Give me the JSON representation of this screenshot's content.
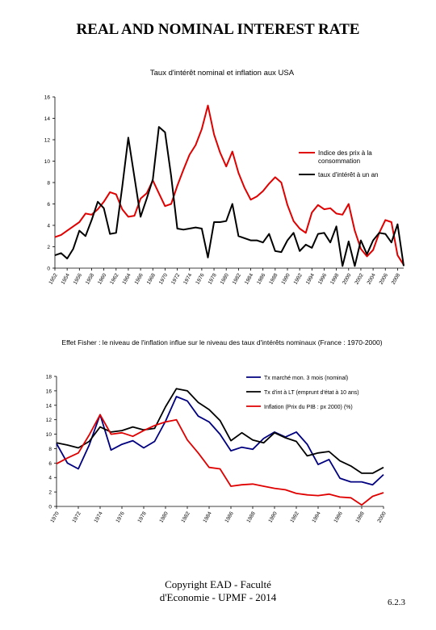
{
  "page": {
    "title": "REAL AND NOMINAL INTEREST RATE",
    "footer_line1": "Copyright EAD - Faculté",
    "footer_line2": "d'Economie - UPMF - 2014",
    "page_number": "6.2.3"
  },
  "chart_data": [
    {
      "type": "line",
      "title": "Taux d'intérêt nominal et inflation aux USA",
      "xlabel": "",
      "ylabel": "",
      "x": [
        1952,
        1953,
        1954,
        1955,
        1956,
        1957,
        1958,
        1959,
        1960,
        1961,
        1962,
        1963,
        1964,
        1965,
        1966,
        1967,
        1968,
        1969,
        1970,
        1971,
        1972,
        1973,
        1974,
        1975,
        1976,
        1977,
        1978,
        1979,
        1980,
        1981,
        1982,
        1983,
        1984,
        1985,
        1986,
        1987,
        1988,
        1989,
        1990,
        1991,
        1992,
        1993,
        1994,
        1995,
        1996,
        1997,
        1998,
        1999,
        2000,
        2001,
        2002,
        2003,
        2004,
        2005,
        2006,
        2007,
        2008,
        2009
      ],
      "x_tick_labels": [
        "1952",
        "1954",
        "1956",
        "1958",
        "1960",
        "1962",
        "1964",
        "1966",
        "1968",
        "1970",
        "1972",
        "1974",
        "1976",
        "1978",
        "1980",
        "1982",
        "1984",
        "1986",
        "1988",
        "1990",
        "1992",
        "1994",
        "1996",
        "1998",
        "2000",
        "2002",
        "2004",
        "2006",
        "2008"
      ],
      "y_tick_labels": [
        "0",
        "2",
        "4",
        "6",
        "8",
        "10",
        "12",
        "14",
        "16"
      ],
      "ylim": [
        0,
        16
      ],
      "legend_position": "right",
      "series": [
        {
          "name": "Indice des prix à la consommation",
          "color": "#e00000",
          "values": [
            2.9,
            3.1,
            3.5,
            3.9,
            4.3,
            5.1,
            5.0,
            5.5,
            6.2,
            7.1,
            6.9,
            5.5,
            4.8,
            4.9,
            6.5,
            7.0,
            8.2,
            7.0,
            5.8,
            6.0,
            7.7,
            9.2,
            10.6,
            11.5,
            13.0,
            15.2,
            12.5,
            10.8,
            9.5,
            10.9,
            8.9,
            7.5,
            6.4,
            6.7,
            7.2,
            7.9,
            8.5,
            8.0,
            5.9,
            4.4,
            3.7,
            3.3,
            5.2,
            5.9,
            5.5,
            5.6,
            5.1,
            5.0,
            6.0,
            3.5,
            1.8,
            1.1,
            1.7,
            3.3,
            4.5,
            4.3,
            1.2,
            0.3
          ]
        },
        {
          "name": "taux d'intérêt à un an",
          "color": "#000000",
          "values": [
            1.2,
            1.4,
            0.9,
            1.8,
            3.5,
            3.0,
            4.5,
            6.2,
            5.6,
            3.2,
            3.3,
            7.6,
            12.2,
            8.5,
            4.8,
            6.5,
            8.3,
            13.2,
            12.7,
            8.6,
            3.7,
            3.6,
            3.7,
            3.8,
            3.7,
            1.0,
            4.3,
            4.3,
            4.4,
            6.0,
            3.0,
            2.8,
            2.6,
            2.6,
            2.4,
            3.2,
            1.6,
            1.5,
            2.6,
            3.3,
            1.6,
            2.2,
            1.9,
            3.2,
            3.3,
            2.4,
            3.9,
            0.2,
            2.5,
            0.2,
            2.6,
            1.3,
            2.6,
            3.3,
            3.2,
            2.4,
            4.1,
            0.2
          ]
        }
      ]
    },
    {
      "type": "line",
      "title": "Effet Fisher : le niveau de l'inflation influe sur le niveau des taux d'intérêts nominaux (France : 1970-2000)",
      "xlabel": "",
      "ylabel": "",
      "x": [
        1970,
        1971,
        1972,
        1973,
        1974,
        1975,
        1976,
        1977,
        1978,
        1979,
        1980,
        1981,
        1982,
        1983,
        1984,
        1985,
        1986,
        1987,
        1988,
        1989,
        1990,
        1991,
        1992,
        1993,
        1994,
        1995,
        1996,
        1997,
        1998,
        1999,
        2000
      ],
      "x_tick_labels": [
        "1970",
        "1972",
        "1974",
        "1976",
        "1978",
        "1980",
        "1982",
        "1984",
        "1986",
        "1988",
        "1990",
        "1992",
        "1994",
        "1996",
        "1998",
        "2000"
      ],
      "y_tick_labels": [
        "0",
        "2",
        "4",
        "6",
        "8",
        "10",
        "12",
        "14",
        "16",
        "18"
      ],
      "ylim": [
        0,
        18
      ],
      "legend_position": "top-right",
      "series": [
        {
          "name": "Tx marché mon. 3 mois (nominal)",
          "color": "#000080",
          "values": [
            8.7,
            6.0,
            5.2,
            8.5,
            12.7,
            7.8,
            8.6,
            9.1,
            8.1,
            9.0,
            11.8,
            15.2,
            14.6,
            12.5,
            11.7,
            10.0,
            7.7,
            8.2,
            7.9,
            9.4,
            10.3,
            9.6,
            10.3,
            8.6,
            5.8,
            6.5,
            3.9,
            3.4,
            3.4,
            3.0,
            4.4
          ]
        },
        {
          "name": "Tx d'int à LT (emprunt d'état à 10 ans)",
          "color": "#000000",
          "values": [
            8.8,
            8.5,
            8.1,
            9.0,
            11.0,
            10.3,
            10.5,
            11.0,
            10.6,
            10.8,
            13.8,
            16.3,
            16.0,
            14.4,
            13.4,
            11.9,
            9.1,
            10.2,
            9.2,
            8.8,
            10.2,
            9.5,
            9.0,
            7.0,
            7.4,
            7.6,
            6.3,
            5.6,
            4.6,
            4.6,
            5.4
          ]
        },
        {
          "name": "Inflation (Prix du PIB : px 2000) (%)",
          "color": "#e00000",
          "values": [
            5.9,
            6.7,
            7.4,
            9.9,
            12.7,
            10.0,
            10.2,
            9.7,
            10.5,
            11.2,
            11.7,
            12.0,
            9.2,
            7.4,
            5.4,
            5.2,
            2.8,
            3.0,
            3.1,
            2.8,
            2.5,
            2.3,
            1.8,
            1.6,
            1.5,
            1.7,
            1.3,
            1.2,
            0.2,
            1.4,
            1.9
          ]
        }
      ]
    }
  ]
}
